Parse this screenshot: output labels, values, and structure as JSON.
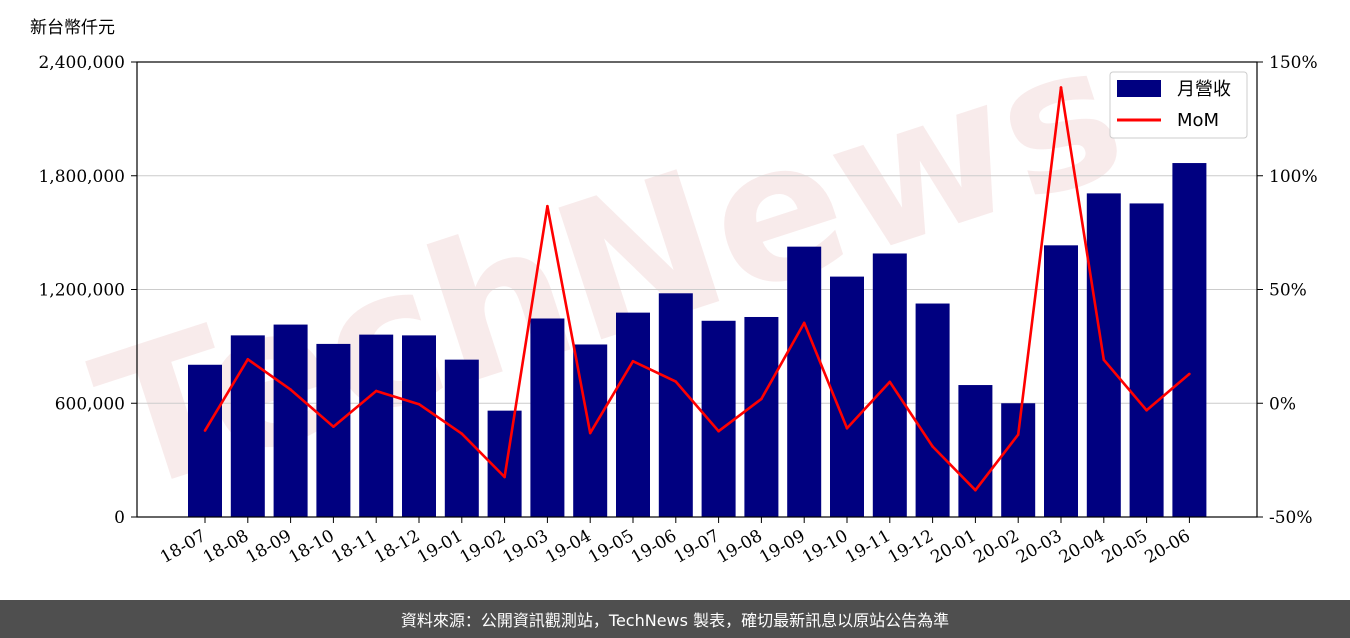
{
  "chart_data": {
    "type": "bar",
    "y_left_unit": "新台幣仟元",
    "categories": [
      "18-07",
      "18-08",
      "18-09",
      "18-10",
      "18-11",
      "18-12",
      "19-01",
      "19-02",
      "19-03",
      "19-04",
      "19-05",
      "19-06",
      "19-07",
      "19-08",
      "19-09",
      "19-10",
      "19-11",
      "19-12",
      "20-01",
      "20-02",
      "20-03",
      "20-04",
      "20-05",
      "20-06"
    ],
    "series": [
      {
        "name": "月營收",
        "type": "bar",
        "axis": "left",
        "color": "#000080",
        "values": [
          803000,
          958000,
          1015000,
          913000,
          962000,
          958000,
          830000,
          561000,
          1047000,
          910000,
          1078000,
          1180000,
          1035000,
          1055000,
          1426000,
          1268000,
          1390000,
          1126000,
          696000,
          600000,
          1433000,
          1707000,
          1654000,
          1867000
        ]
      },
      {
        "name": "MoM",
        "type": "line",
        "axis": "right",
        "color": "#ff0000",
        "values": [
          -12,
          19.3,
          6,
          -10.3,
          5.4,
          -0.4,
          -13.4,
          -32.4,
          86.6,
          -13.1,
          18.5,
          9.5,
          -12.3,
          1.9,
          35.3,
          -11,
          9.4,
          -19,
          -38.2,
          -13.8,
          138.8,
          19.1,
          -3.1,
          12.9
        ]
      }
    ],
    "y_left": {
      "min": 0,
      "max": 2400000,
      "ticks": [
        0,
        600000,
        1200000,
        1800000,
        2400000
      ],
      "tick_labels": [
        "0",
        "600,000",
        "1,200,000",
        "1,800,000",
        "2,400,000"
      ]
    },
    "y_right": {
      "min": -50,
      "max": 150,
      "ticks": [
        -50,
        0,
        50,
        100,
        150
      ],
      "tick_labels": [
        "-50%",
        "0%",
        "50%",
        "100%",
        "150%"
      ]
    },
    "grid": "horizontal",
    "legend_position": "top-right"
  },
  "watermark": "TechNews",
  "footer": {
    "text": "資料來源：公開資訊觀測站，TechNews 製表，確切最新訊息以原站公告為準"
  }
}
